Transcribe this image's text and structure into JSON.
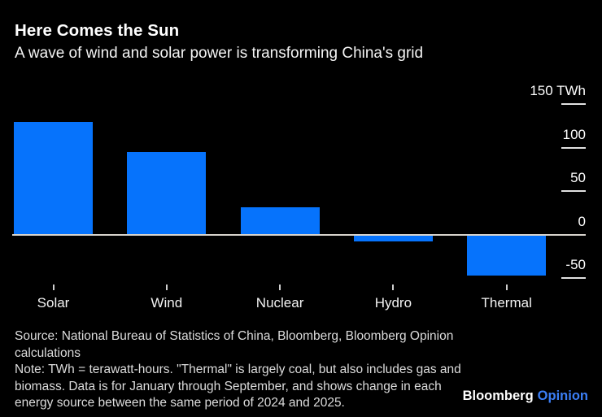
{
  "header": {
    "title": "Here Comes the Sun",
    "subtitle": "A wave of wind and solar power is transforming China's grid"
  },
  "chart_data": {
    "type": "bar",
    "title": "Here Comes the Sun",
    "subtitle": "A wave of wind and solar power is transforming China's grid",
    "categories": [
      "Solar",
      "Wind",
      "Nuclear",
      "Hydro",
      "Thermal"
    ],
    "values": [
      130,
      95,
      31,
      -8,
      -47
    ],
    "unit": "TWh",
    "xlabel": "",
    "ylabel": "TWh",
    "y_ticks": [
      150,
      100,
      50,
      0,
      -50
    ],
    "y_tick_labels": [
      "150 TWh",
      "100",
      "50",
      "0",
      "-50"
    ],
    "ylim": [
      -65,
      165
    ],
    "bar_color": "#0673fc",
    "axis_text_color": "#ffffff",
    "zero_line_color": "#d8d4cd",
    "grid": "off",
    "legend": "none",
    "axis_side": "right"
  },
  "footer": {
    "source": "Source: National Bureau of Statistics of China, Bloomberg, Bloomberg Opinion calculations",
    "note": "Note: TWh = terawatt-hours. \"Thermal\" is largely coal, but also includes gas and biomass. Data is for January through September, and shows change in each energy source between the same period of 2024 and 2025."
  },
  "logo": {
    "brand": "Bloomberg",
    "suffix": "Opinion",
    "suffix_color": "#3b7ef5"
  }
}
